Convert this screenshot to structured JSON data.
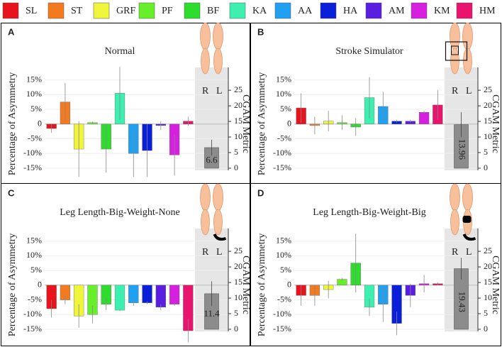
{
  "legend": [
    {
      "name": "SL",
      "color": "#e8141d"
    },
    {
      "name": "ST",
      "color": "#f47a20"
    },
    {
      "name": "GRF",
      "color": "#eef53a"
    },
    {
      "name": "PF",
      "color": "#66ef2a"
    },
    {
      "name": "BF",
      "color": "#2edc2e"
    },
    {
      "name": "KA",
      "color": "#3ef0b0"
    },
    {
      "name": "AA",
      "color": "#1fa0f0"
    },
    {
      "name": "HA",
      "color": "#0a1fd8"
    },
    {
      "name": "AM",
      "color": "#5a1ee0"
    },
    {
      "name": "KM",
      "color": "#d71fe0"
    },
    {
      "name": "HM",
      "color": "#e8146e"
    }
  ],
  "chart_data": [
    {
      "type": "bar",
      "label": "A",
      "title": "Normal",
      "ylabel": "Percentage of Asymmetry",
      "y2label": "CGAM Metric",
      "side_labels": [
        "R",
        "L"
      ],
      "values": [
        -1.5,
        7.5,
        -8.5,
        0.5,
        -8.5,
        10.5,
        -10,
        -9,
        -0.5,
        -10.5,
        1
      ],
      "errors": [
        1.5,
        6.5,
        9.5,
        0.3,
        8,
        9,
        8,
        9,
        1.5,
        7,
        1.5
      ],
      "cgam": 6.6,
      "cgam_error": 2.5,
      "ylim": [
        -15,
        20
      ],
      "yticks": [
        {
          "value": -15,
          "label": "-15%"
        },
        {
          "value": -10,
          "label": "-10%"
        },
        {
          "value": -5,
          "label": "-5%"
        },
        0,
        {
          "value": 5,
          "label": "5%"
        },
        {
          "value": 10,
          "label": "10%"
        },
        {
          "value": 15,
          "label": "15%"
        }
      ],
      "y2lim": [
        0,
        33
      ],
      "y2ticks": [
        0,
        5,
        10,
        15,
        20,
        25
      ]
    },
    {
      "type": "bar",
      "label": "B",
      "title": "Stroke Simulator",
      "ylabel": "Percentage of Asymmetry",
      "y2label": "CGAM Metric",
      "side_labels": [
        "R",
        "L"
      ],
      "values": [
        5.5,
        -0.5,
        1,
        0.5,
        -1,
        9,
        6,
        1,
        1,
        4,
        6.5
      ],
      "errors": [
        5,
        3,
        3.5,
        2.5,
        3,
        7,
        5,
        0.5,
        0.5,
        0.5,
        5
      ],
      "cgam": 13.96,
      "cgam_error": 4,
      "ylim": [
        -15,
        20
      ],
      "yticks": [
        {
          "value": -15,
          "label": "-15%"
        },
        {
          "value": -10,
          "label": "-10%"
        },
        {
          "value": -5,
          "label": "-5%"
        },
        0,
        {
          "value": 5,
          "label": "5%"
        },
        {
          "value": 10,
          "label": "10%"
        },
        {
          "value": 15,
          "label": "15%"
        }
      ],
      "y2lim": [
        0,
        33
      ],
      "y2ticks": [
        0,
        5,
        10,
        15,
        20,
        25
      ]
    },
    {
      "type": "bar",
      "label": "C",
      "title": "Leg Length-Big-Weight-None",
      "ylabel": "Percentage of Asymmetry",
      "y2label": "CGAM Metric",
      "side_labels": [
        "R",
        "L"
      ],
      "values": [
        -8,
        -5,
        -10.5,
        -10,
        -6.5,
        -8.5,
        -6,
        -6,
        -7.5,
        -6.5,
        -15.5
      ],
      "errors": [
        3,
        1.5,
        4,
        3,
        2,
        0.3,
        1,
        0.5,
        1,
        0.5,
        4
      ],
      "cgam": 11.4,
      "cgam_error": 4,
      "ylim": [
        -15,
        20
      ],
      "yticks": [
        {
          "value": -15,
          "label": "-15%"
        },
        {
          "value": -10,
          "label": "-10%"
        },
        {
          "value": -5,
          "label": "-5%"
        },
        0,
        {
          "value": 5,
          "label": "5%"
        },
        {
          "value": 10,
          "label": "10%"
        },
        {
          "value": 15,
          "label": "15%"
        }
      ],
      "y2lim": [
        0,
        33
      ],
      "y2ticks": [
        0,
        5,
        10,
        15,
        20,
        25
      ]
    },
    {
      "type": "bar",
      "label": "D",
      "title": "Leg Length-Big-Weight-Big",
      "ylabel": "Percentage of Asymmetry",
      "y2label": "CGAM Metric",
      "side_labels": [
        "R",
        "L"
      ],
      "values": [
        -3.5,
        -3.5,
        -1.5,
        2,
        7.5,
        -7.5,
        -6.5,
        -13,
        -3.5,
        0.5,
        0.5
      ],
      "errors": [
        3.5,
        3.5,
        3,
        0.5,
        10,
        3,
        6,
        4,
        4,
        3,
        0.5
      ],
      "cgam": 19.43,
      "cgam_error": 3.5,
      "ylim": [
        -15,
        20
      ],
      "yticks": [
        {
          "value": -15,
          "label": "-15%"
        },
        {
          "value": -10,
          "label": "-10%"
        },
        {
          "value": -5,
          "label": "-5%"
        },
        0,
        {
          "value": 5,
          "label": "5%"
        },
        {
          "value": 10,
          "label": "10%"
        },
        {
          "value": 15,
          "label": "15%"
        }
      ],
      "y2lim": [
        0,
        33
      ],
      "y2ticks": [
        0,
        5,
        10,
        15,
        20,
        25
      ]
    }
  ]
}
